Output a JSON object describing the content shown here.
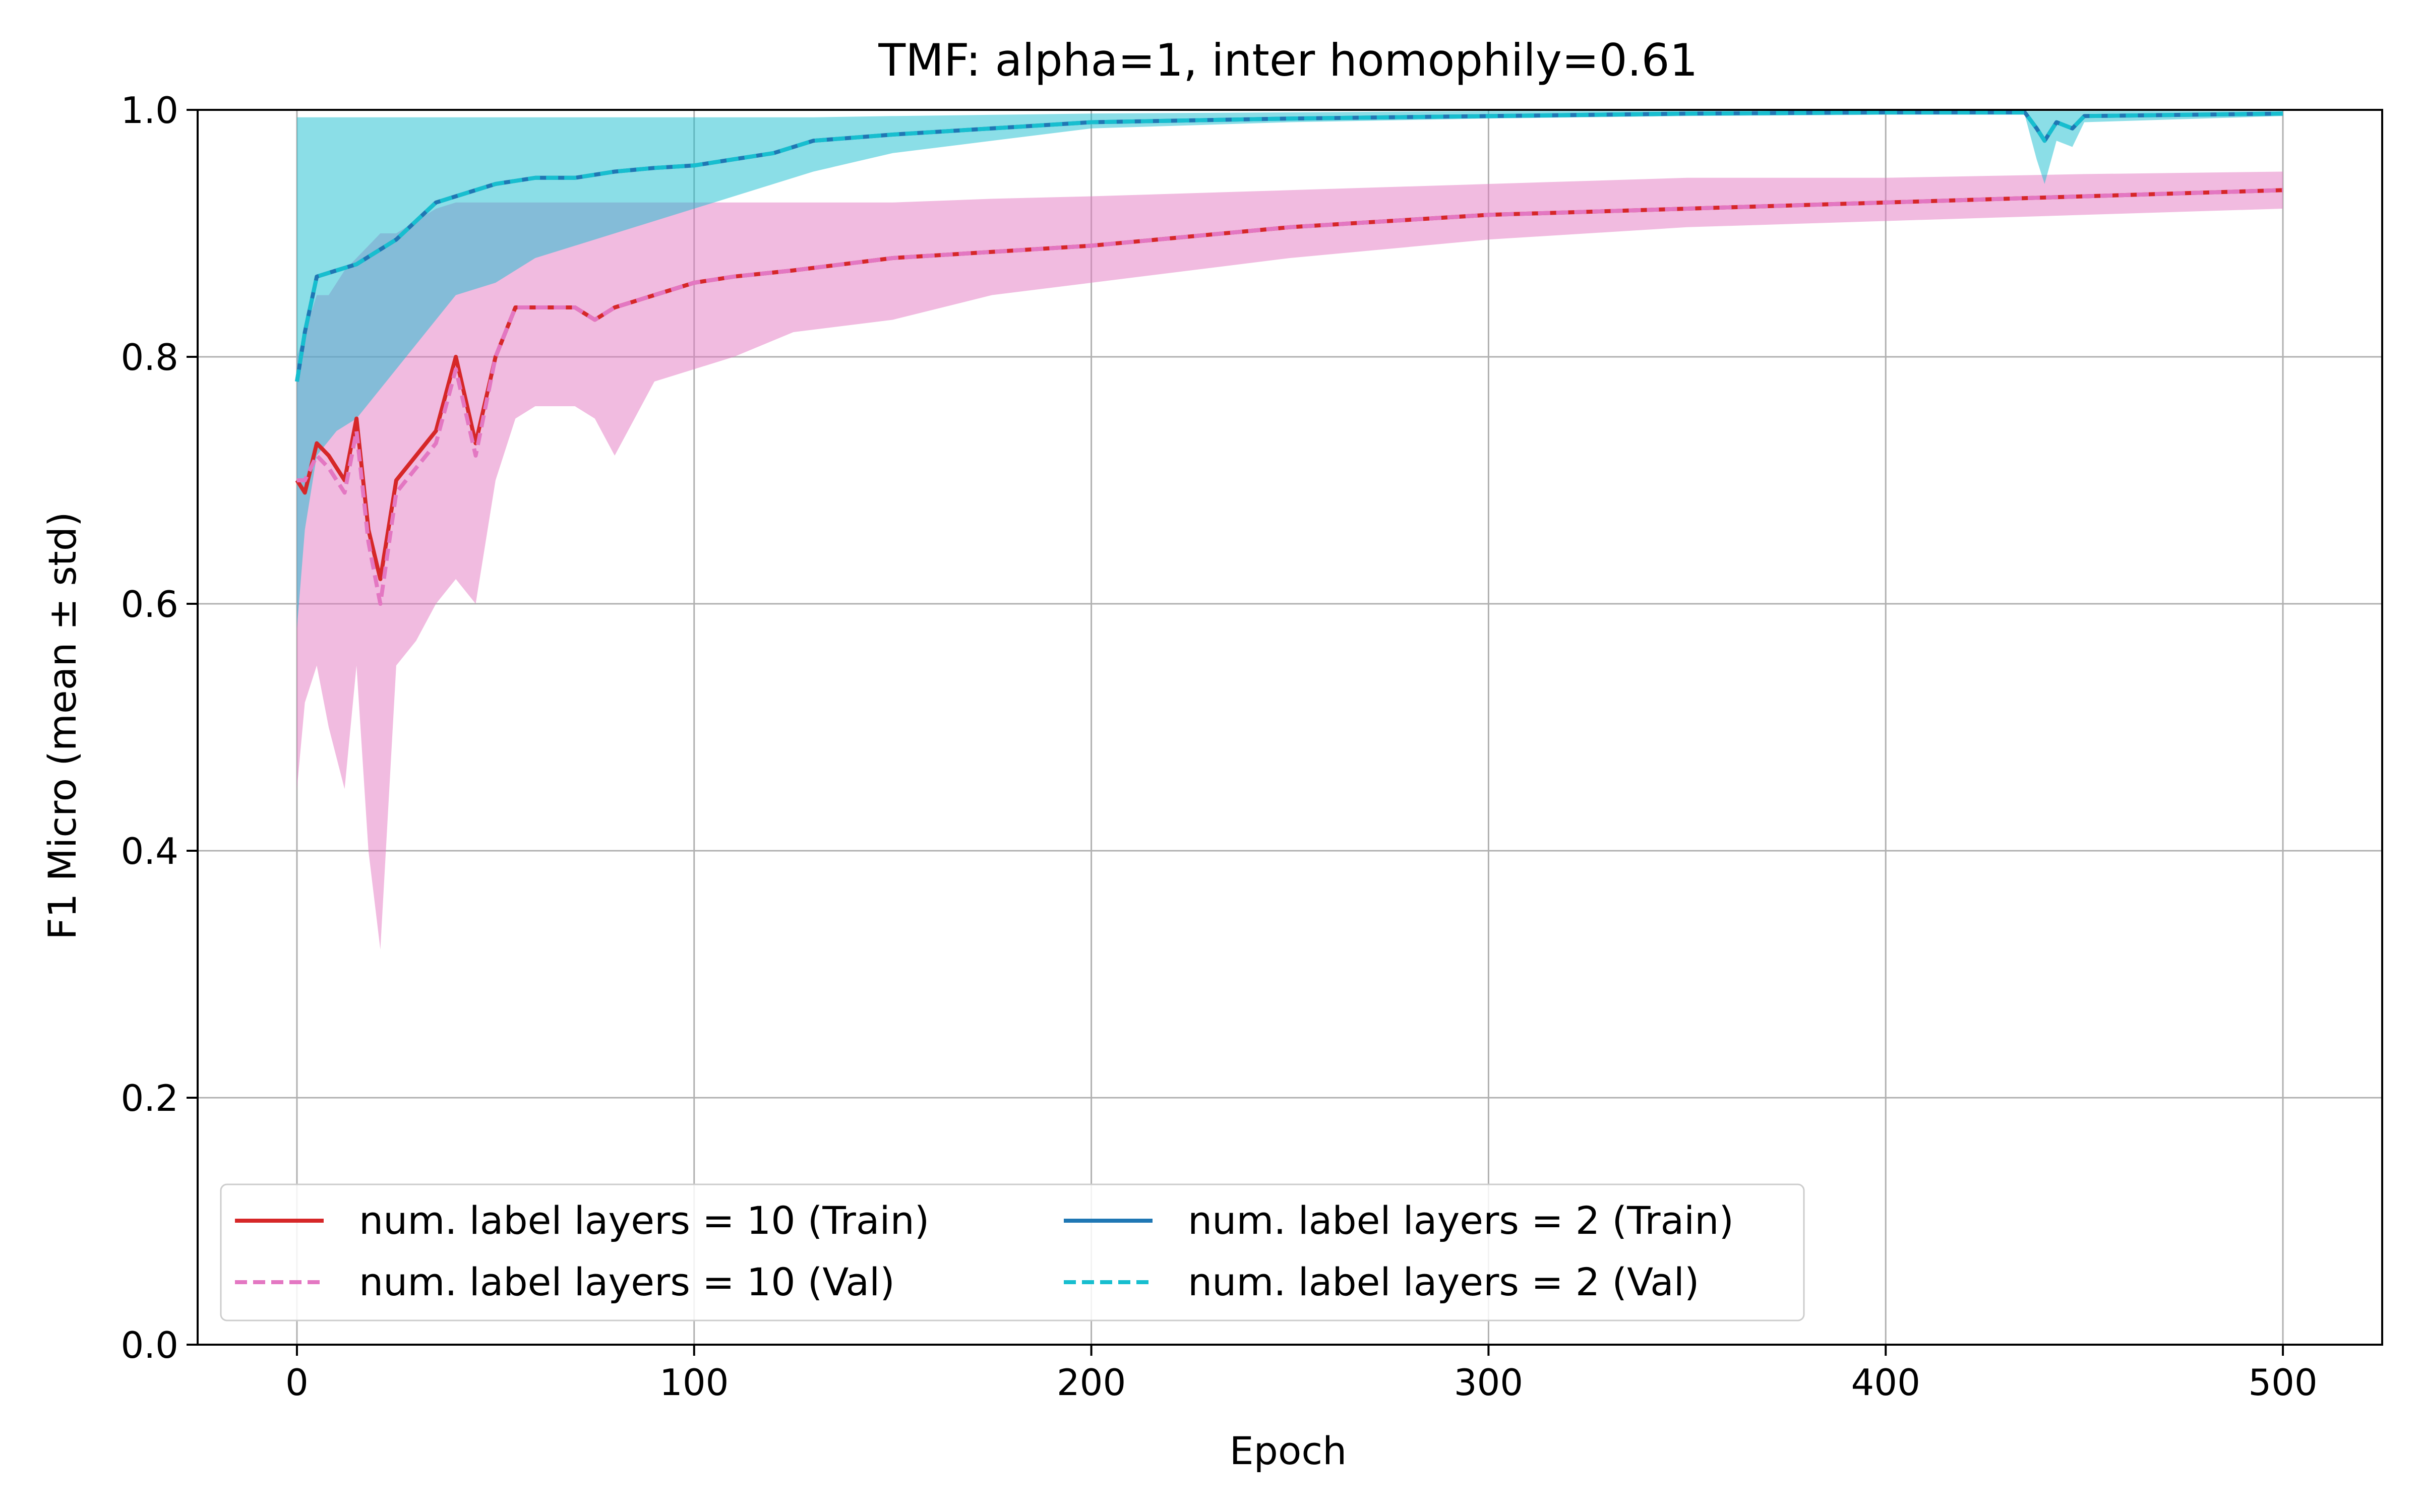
{
  "chart_data": {
    "type": "line",
    "title": "TMF: alpha=1, inter homophily=0.61",
    "xlabel": "Epoch",
    "ylabel": "F1 Micro (mean ± std)",
    "xlim": [
      -25,
      525
    ],
    "ylim": [
      0.0,
      1.0
    ],
    "xticks": [
      0,
      100,
      200,
      300,
      400,
      500
    ],
    "xtick_labels": [
      "0",
      "100",
      "200",
      "300",
      "400",
      "500"
    ],
    "yticks": [
      0.0,
      0.2,
      0.4,
      0.6,
      0.8,
      1.0
    ],
    "ytick_labels": [
      "0.0",
      "0.2",
      "0.4",
      "0.6",
      "0.8",
      "1.0"
    ],
    "grid": true,
    "legend_position": "lower-left",
    "legend_columns": 2,
    "series": [
      {
        "name": "num. label layers = 10 (Train)",
        "color": "#d62728",
        "style": "solid",
        "band_color": "#e377c2",
        "x": [
          0,
          2,
          5,
          8,
          12,
          15,
          18,
          21,
          25,
          30,
          35,
          40,
          45,
          50,
          55,
          60,
          65,
          70,
          75,
          80,
          90,
          100,
          110,
          125,
          150,
          175,
          200,
          250,
          300,
          350,
          400,
          450,
          500
        ],
        "y": [
          0.7,
          0.69,
          0.73,
          0.72,
          0.7,
          0.75,
          0.66,
          0.62,
          0.7,
          0.72,
          0.74,
          0.8,
          0.73,
          0.8,
          0.84,
          0.84,
          0.84,
          0.84,
          0.83,
          0.84,
          0.85,
          0.86,
          0.865,
          0.87,
          0.88,
          0.885,
          0.89,
          0.905,
          0.915,
          0.92,
          0.925,
          0.93,
          0.935
        ],
        "lower": [
          0.45,
          0.52,
          0.55,
          0.5,
          0.45,
          0.55,
          0.4,
          0.32,
          0.55,
          0.57,
          0.6,
          0.62,
          0.6,
          0.7,
          0.75,
          0.76,
          0.76,
          0.76,
          0.75,
          0.72,
          0.78,
          0.79,
          0.8,
          0.82,
          0.83,
          0.85,
          0.86,
          0.88,
          0.895,
          0.905,
          0.91,
          0.915,
          0.92
        ],
        "upper": [
          0.8,
          0.82,
          0.85,
          0.85,
          0.87,
          0.88,
          0.89,
          0.9,
          0.9,
          0.91,
          0.92,
          0.925,
          0.925,
          0.925,
          0.925,
          0.925,
          0.925,
          0.925,
          0.925,
          0.925,
          0.925,
          0.925,
          0.925,
          0.925,
          0.925,
          0.928,
          0.93,
          0.935,
          0.94,
          0.945,
          0.945,
          0.948,
          0.95
        ]
      },
      {
        "name": "num. label layers = 10 (Val)",
        "color": "#e377c2",
        "style": "dashed",
        "x": [
          0,
          2,
          5,
          8,
          12,
          15,
          18,
          21,
          25,
          30,
          35,
          40,
          45,
          50,
          55,
          60,
          65,
          70,
          75,
          80,
          90,
          100,
          110,
          125,
          150,
          175,
          200,
          250,
          300,
          350,
          400,
          450,
          500
        ],
        "y": [
          0.7,
          0.7,
          0.72,
          0.71,
          0.69,
          0.74,
          0.65,
          0.6,
          0.69,
          0.71,
          0.73,
          0.79,
          0.72,
          0.8,
          0.84,
          0.84,
          0.84,
          0.84,
          0.83,
          0.84,
          0.85,
          0.86,
          0.865,
          0.87,
          0.88,
          0.885,
          0.89,
          0.905,
          0.915,
          0.92,
          0.925,
          0.93,
          0.935
        ]
      },
      {
        "name": "num. label layers = 2 (Train)",
        "color": "#1f77b4",
        "style": "solid",
        "band_color": "#17becf",
        "x": [
          0,
          2,
          5,
          10,
          15,
          20,
          25,
          30,
          35,
          40,
          50,
          60,
          70,
          80,
          90,
          100,
          110,
          120,
          130,
          150,
          175,
          200,
          250,
          300,
          350,
          400,
          435,
          438,
          440,
          443,
          447,
          450,
          500
        ],
        "y": [
          0.78,
          0.82,
          0.865,
          0.87,
          0.875,
          0.885,
          0.895,
          0.91,
          0.925,
          0.93,
          0.94,
          0.945,
          0.945,
          0.95,
          0.953,
          0.955,
          0.96,
          0.965,
          0.975,
          0.98,
          0.985,
          0.99,
          0.993,
          0.995,
          0.997,
          0.998,
          0.998,
          0.985,
          0.975,
          0.99,
          0.985,
          0.995,
          0.997
        ],
        "lower": [
          0.58,
          0.66,
          0.72,
          0.74,
          0.75,
          0.77,
          0.79,
          0.81,
          0.83,
          0.85,
          0.86,
          0.88,
          0.89,
          0.9,
          0.91,
          0.92,
          0.93,
          0.94,
          0.95,
          0.965,
          0.975,
          0.985,
          0.99,
          0.993,
          0.995,
          0.996,
          0.996,
          0.96,
          0.94,
          0.975,
          0.97,
          0.99,
          0.995
        ],
        "upper": [
          0.994,
          0.994,
          0.994,
          0.994,
          0.994,
          0.994,
          0.994,
          0.994,
          0.994,
          0.994,
          0.994,
          0.994,
          0.994,
          0.994,
          0.994,
          0.994,
          0.994,
          0.994,
          0.994,
          0.995,
          0.996,
          0.997,
          0.998,
          0.999,
          0.999,
          0.999,
          0.999,
          0.999,
          0.999,
          0.999,
          0.999,
          0.999,
          0.999
        ]
      },
      {
        "name": "num. label layers = 2 (Val)",
        "color": "#17becf",
        "style": "dashed",
        "x": [
          0,
          2,
          5,
          10,
          15,
          20,
          25,
          30,
          35,
          40,
          50,
          60,
          70,
          80,
          90,
          100,
          110,
          120,
          130,
          150,
          175,
          200,
          250,
          300,
          350,
          400,
          435,
          438,
          440,
          443,
          447,
          450,
          500
        ],
        "y": [
          0.78,
          0.82,
          0.865,
          0.87,
          0.875,
          0.885,
          0.895,
          0.91,
          0.925,
          0.93,
          0.94,
          0.945,
          0.945,
          0.95,
          0.953,
          0.955,
          0.96,
          0.965,
          0.975,
          0.98,
          0.985,
          0.99,
          0.993,
          0.995,
          0.997,
          0.998,
          0.998,
          0.985,
          0.975,
          0.99,
          0.985,
          0.995,
          0.997
        ]
      }
    ]
  }
}
